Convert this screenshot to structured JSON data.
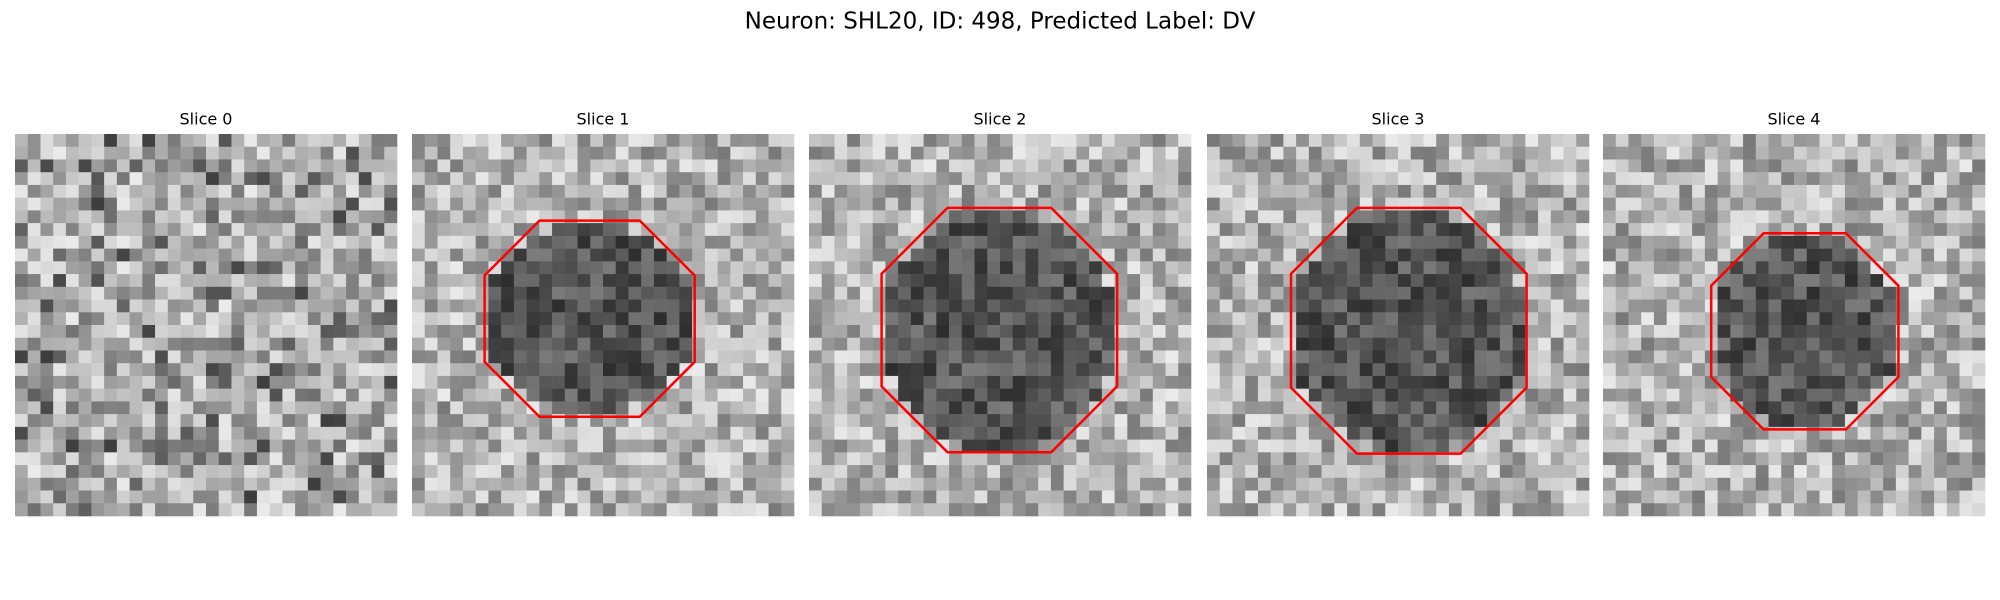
{
  "figure": {
    "title": "Neuron: SHL20, ID: 498, Predicted Label: DV",
    "panels": [
      {
        "title": "Slice 0"
      },
      {
        "title": "Slice 1"
      },
      {
        "title": "Slice 2"
      },
      {
        "title": "Slice 3"
      },
      {
        "title": "Slice 4"
      }
    ]
  }
}
